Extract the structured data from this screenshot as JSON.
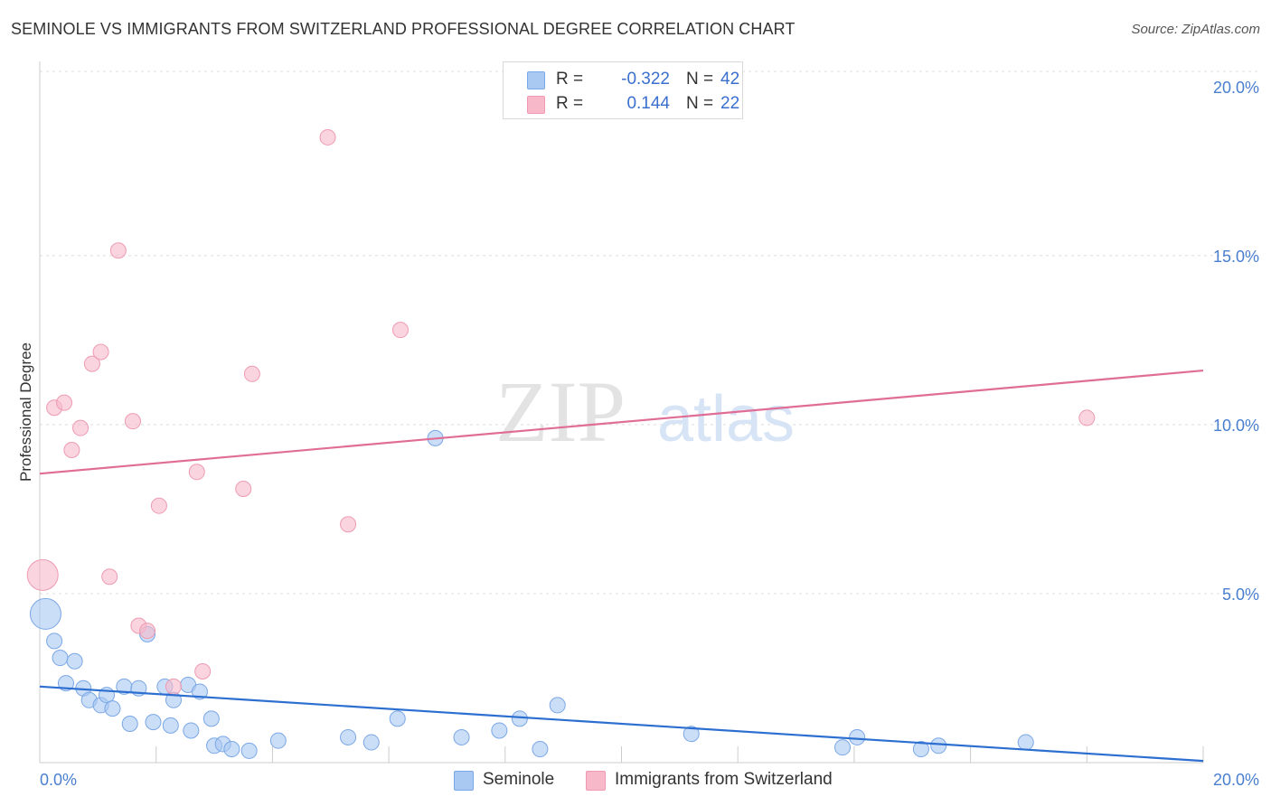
{
  "header": {
    "title": "SEMINOLE VS IMMIGRANTS FROM SWITZERLAND PROFESSIONAL DEGREE CORRELATION CHART",
    "source": "Source: ZipAtlas.com"
  },
  "watermark": {
    "zip": "ZIP",
    "atlas": "atlas"
  },
  "legend": {
    "rows": [
      {
        "r_label": "R =",
        "r_value": "-0.322",
        "n_label": "N =",
        "n_value": "42",
        "color": "#a9c8f2"
      },
      {
        "r_label": "R =",
        "r_value": "0.144",
        "n_label": "N =",
        "n_value": "22",
        "color": "#f7b9ca"
      }
    ]
  },
  "bottom_legend": {
    "seminole": "Seminole",
    "swiss": "Immigrants from Switzerland"
  },
  "colors": {
    "blue_fill": "#a9c8f2",
    "blue_stroke": "#7aa7e6",
    "blue_line": "#2d6fd0",
    "pink_fill": "#f7b9ca",
    "pink_stroke": "#ee9ab2",
    "pink_line": "#e06d96",
    "tick_text": "#4a7fd0"
  },
  "chart_data": {
    "type": "scatter",
    "title": "SEMINOLE VS IMMIGRANTS FROM SWITZERLAND PROFESSIONAL DEGREE CORRELATION CHART",
    "xlabel": "",
    "ylabel": "Professional Degree",
    "xlim": [
      0,
      20
    ],
    "ylim": [
      0,
      20
    ],
    "x_tick_labels": [
      "0.0%",
      "20.0%"
    ],
    "y_ticks": [
      5,
      10,
      15,
      20
    ],
    "y_tick_labels": [
      "5.0%",
      "10.0%",
      "15.0%",
      "20.0%"
    ],
    "grid": true,
    "legend_position": "top-center",
    "series": [
      {
        "name": "Seminole",
        "r": -0.322,
        "n": 42,
        "trend": {
          "x": [
            0,
            20
          ],
          "y": [
            2.25,
            0.05
          ]
        },
        "points": [
          {
            "x": 0.1,
            "y": 4.4,
            "big": true
          },
          {
            "x": 0.25,
            "y": 3.6
          },
          {
            "x": 0.35,
            "y": 3.1
          },
          {
            "x": 0.6,
            "y": 3.0
          },
          {
            "x": 0.45,
            "y": 2.35
          },
          {
            "x": 0.75,
            "y": 2.2
          },
          {
            "x": 0.85,
            "y": 1.85
          },
          {
            "x": 1.05,
            "y": 1.7
          },
          {
            "x": 1.15,
            "y": 2.0
          },
          {
            "x": 1.25,
            "y": 1.6
          },
          {
            "x": 1.45,
            "y": 2.25
          },
          {
            "x": 1.7,
            "y": 2.2
          },
          {
            "x": 1.55,
            "y": 1.15
          },
          {
            "x": 1.85,
            "y": 3.8
          },
          {
            "x": 1.95,
            "y": 1.2
          },
          {
            "x": 2.15,
            "y": 2.25
          },
          {
            "x": 2.25,
            "y": 1.1
          },
          {
            "x": 2.3,
            "y": 1.85
          },
          {
            "x": 2.55,
            "y": 2.3
          },
          {
            "x": 2.6,
            "y": 0.95
          },
          {
            "x": 2.75,
            "y": 2.1
          },
          {
            "x": 2.95,
            "y": 1.3
          },
          {
            "x": 3.0,
            "y": 0.5
          },
          {
            "x": 3.15,
            "y": 0.55
          },
          {
            "x": 3.3,
            "y": 0.4
          },
          {
            "x": 3.6,
            "y": 0.35
          },
          {
            "x": 4.1,
            "y": 0.65
          },
          {
            "x": 5.3,
            "y": 0.75
          },
          {
            "x": 5.7,
            "y": 0.6
          },
          {
            "x": 6.15,
            "y": 1.3
          },
          {
            "x": 6.8,
            "y": 9.6
          },
          {
            "x": 7.25,
            "y": 0.75
          },
          {
            "x": 7.9,
            "y": 0.95
          },
          {
            "x": 8.25,
            "y": 1.3
          },
          {
            "x": 8.6,
            "y": 0.4
          },
          {
            "x": 8.9,
            "y": 1.7
          },
          {
            "x": 11.2,
            "y": 0.85
          },
          {
            "x": 13.8,
            "y": 0.45
          },
          {
            "x": 14.05,
            "y": 0.75
          },
          {
            "x": 15.15,
            "y": 0.4
          },
          {
            "x": 15.45,
            "y": 0.5
          },
          {
            "x": 16.95,
            "y": 0.6
          }
        ]
      },
      {
        "name": "Immigrants from Switzerland",
        "r": 0.144,
        "n": 22,
        "trend": {
          "x": [
            0,
            20
          ],
          "y": [
            8.55,
            11.6
          ]
        },
        "points": [
          {
            "x": 0.05,
            "y": 5.55,
            "big": true
          },
          {
            "x": 0.25,
            "y": 10.5
          },
          {
            "x": 0.42,
            "y": 10.65
          },
          {
            "x": 0.55,
            "y": 9.25
          },
          {
            "x": 0.7,
            "y": 9.9
          },
          {
            "x": 0.9,
            "y": 11.8
          },
          {
            "x": 1.05,
            "y": 12.15
          },
          {
            "x": 1.2,
            "y": 5.5
          },
          {
            "x": 1.35,
            "y": 15.15
          },
          {
            "x": 1.6,
            "y": 10.1
          },
          {
            "x": 1.7,
            "y": 4.05
          },
          {
            "x": 1.85,
            "y": 3.9
          },
          {
            "x": 2.05,
            "y": 7.6
          },
          {
            "x": 2.3,
            "y": 2.25
          },
          {
            "x": 2.7,
            "y": 8.6
          },
          {
            "x": 2.8,
            "y": 2.7
          },
          {
            "x": 3.5,
            "y": 8.1
          },
          {
            "x": 3.65,
            "y": 11.5
          },
          {
            "x": 4.95,
            "y": 18.5
          },
          {
            "x": 5.3,
            "y": 7.05
          },
          {
            "x": 6.2,
            "y": 12.8
          },
          {
            "x": 18.0,
            "y": 10.2
          }
        ]
      }
    ]
  }
}
